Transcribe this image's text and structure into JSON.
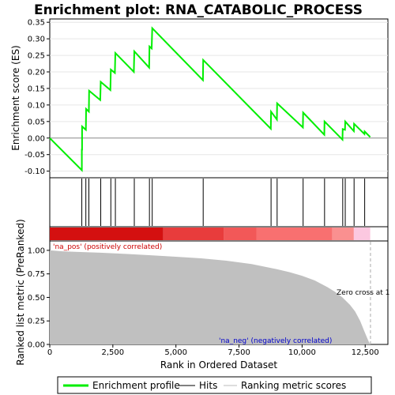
{
  "chart_data": {
    "type": "line",
    "title": "Enrichment plot: RNA_CATABOLIC_PROCESS",
    "es_panel": {
      "ylabel": "Enrichment score (ES)",
      "yticks": [
        "-0.10",
        "-0.05",
        "0.00",
        "0.05",
        "0.10",
        "0.15",
        "0.20",
        "0.25",
        "0.30",
        "0.35"
      ],
      "ylim": [
        -0.12,
        0.36
      ],
      "series": [
        {
          "name": "Enrichment profile",
          "color": "#00ee00",
          "x": [
            0,
            1270,
            1270,
            1280,
            1280,
            1430,
            1440,
            1550,
            1560,
            2000,
            2020,
            2400,
            2420,
            2580,
            2600,
            3330,
            3350,
            3940,
            3950,
            4040,
            4060,
            6070,
            6080,
            8760,
            8770,
            9000,
            9010,
            10030,
            10040,
            10880,
            10890,
            11600,
            11610,
            11700,
            11710,
            12050,
            12060,
            12470,
            12480,
            12700
          ],
          "y": [
            0.0,
            -0.097,
            -0.035,
            -0.035,
            0.035,
            0.025,
            0.088,
            0.08,
            0.143,
            0.115,
            0.17,
            0.145,
            0.207,
            0.197,
            0.257,
            0.2,
            0.262,
            0.213,
            0.277,
            0.271,
            0.332,
            0.175,
            0.236,
            0.028,
            0.08,
            0.056,
            0.105,
            0.032,
            0.077,
            0.01,
            0.05,
            -0.005,
            0.027,
            0.025,
            0.05,
            0.021,
            0.043,
            0.012,
            0.02,
            0.003
          ]
        }
      ]
    },
    "hits": [
      1270,
      1430,
      1550,
      2020,
      2420,
      2600,
      3350,
      3950,
      4060,
      6080,
      8770,
      9010,
      10040,
      10890,
      11610,
      11710,
      12060,
      12480
    ],
    "ranked_panel": {
      "ylabel": "Ranked list metric (PreRanked)",
      "yticks": [
        "0.00",
        "0.25",
        "0.50",
        "0.75",
        "1.00"
      ],
      "ylim": [
        0,
        1.1
      ],
      "xlabel": "Rank in Ordered Dataset",
      "xticks": [
        "0",
        "2,500",
        "5,000",
        "7,500",
        "10,000",
        "12,500"
      ],
      "xlim": [
        0,
        13400
      ],
      "metric_x": [
        0,
        500,
        1000,
        2000,
        3000,
        4000,
        5000,
        6000,
        7000,
        8000,
        9000,
        9500,
        10000,
        10500,
        11000,
        11300,
        11600,
        11900,
        12100,
        12300,
        12450,
        12560,
        12640,
        12700
      ],
      "metric_y": [
        1.0,
        0.99,
        0.985,
        0.975,
        0.962,
        0.948,
        0.932,
        0.915,
        0.89,
        0.855,
        0.8,
        0.768,
        0.73,
        0.68,
        0.61,
        0.56,
        0.5,
        0.42,
        0.35,
        0.25,
        0.15,
        0.08,
        0.03,
        0.0
      ],
      "fill_color": "#c0c0c0",
      "pos_label": "'na_pos' (positively correlated)",
      "neg_label": "'na_neg' (negatively correlated)",
      "zero_cross": "Zero cross at 1",
      "zero_cross_x": 12710
    },
    "heat_segments": [
      {
        "x0": 0,
        "x1": 4500,
        "color": "#d41010"
      },
      {
        "x0": 4500,
        "x1": 6900,
        "color": "#e83c3c"
      },
      {
        "x0": 6900,
        "x1": 8200,
        "color": "#f25858"
      },
      {
        "x0": 8200,
        "x1": 11200,
        "color": "#f87070"
      },
      {
        "x0": 11200,
        "x1": 12050,
        "color": "#fa9090"
      },
      {
        "x0": 12050,
        "x1": 12700,
        "color": "#fcc8e0"
      }
    ],
    "legend": [
      "Enrichment profile",
      "Hits",
      "Ranking metric scores"
    ]
  }
}
